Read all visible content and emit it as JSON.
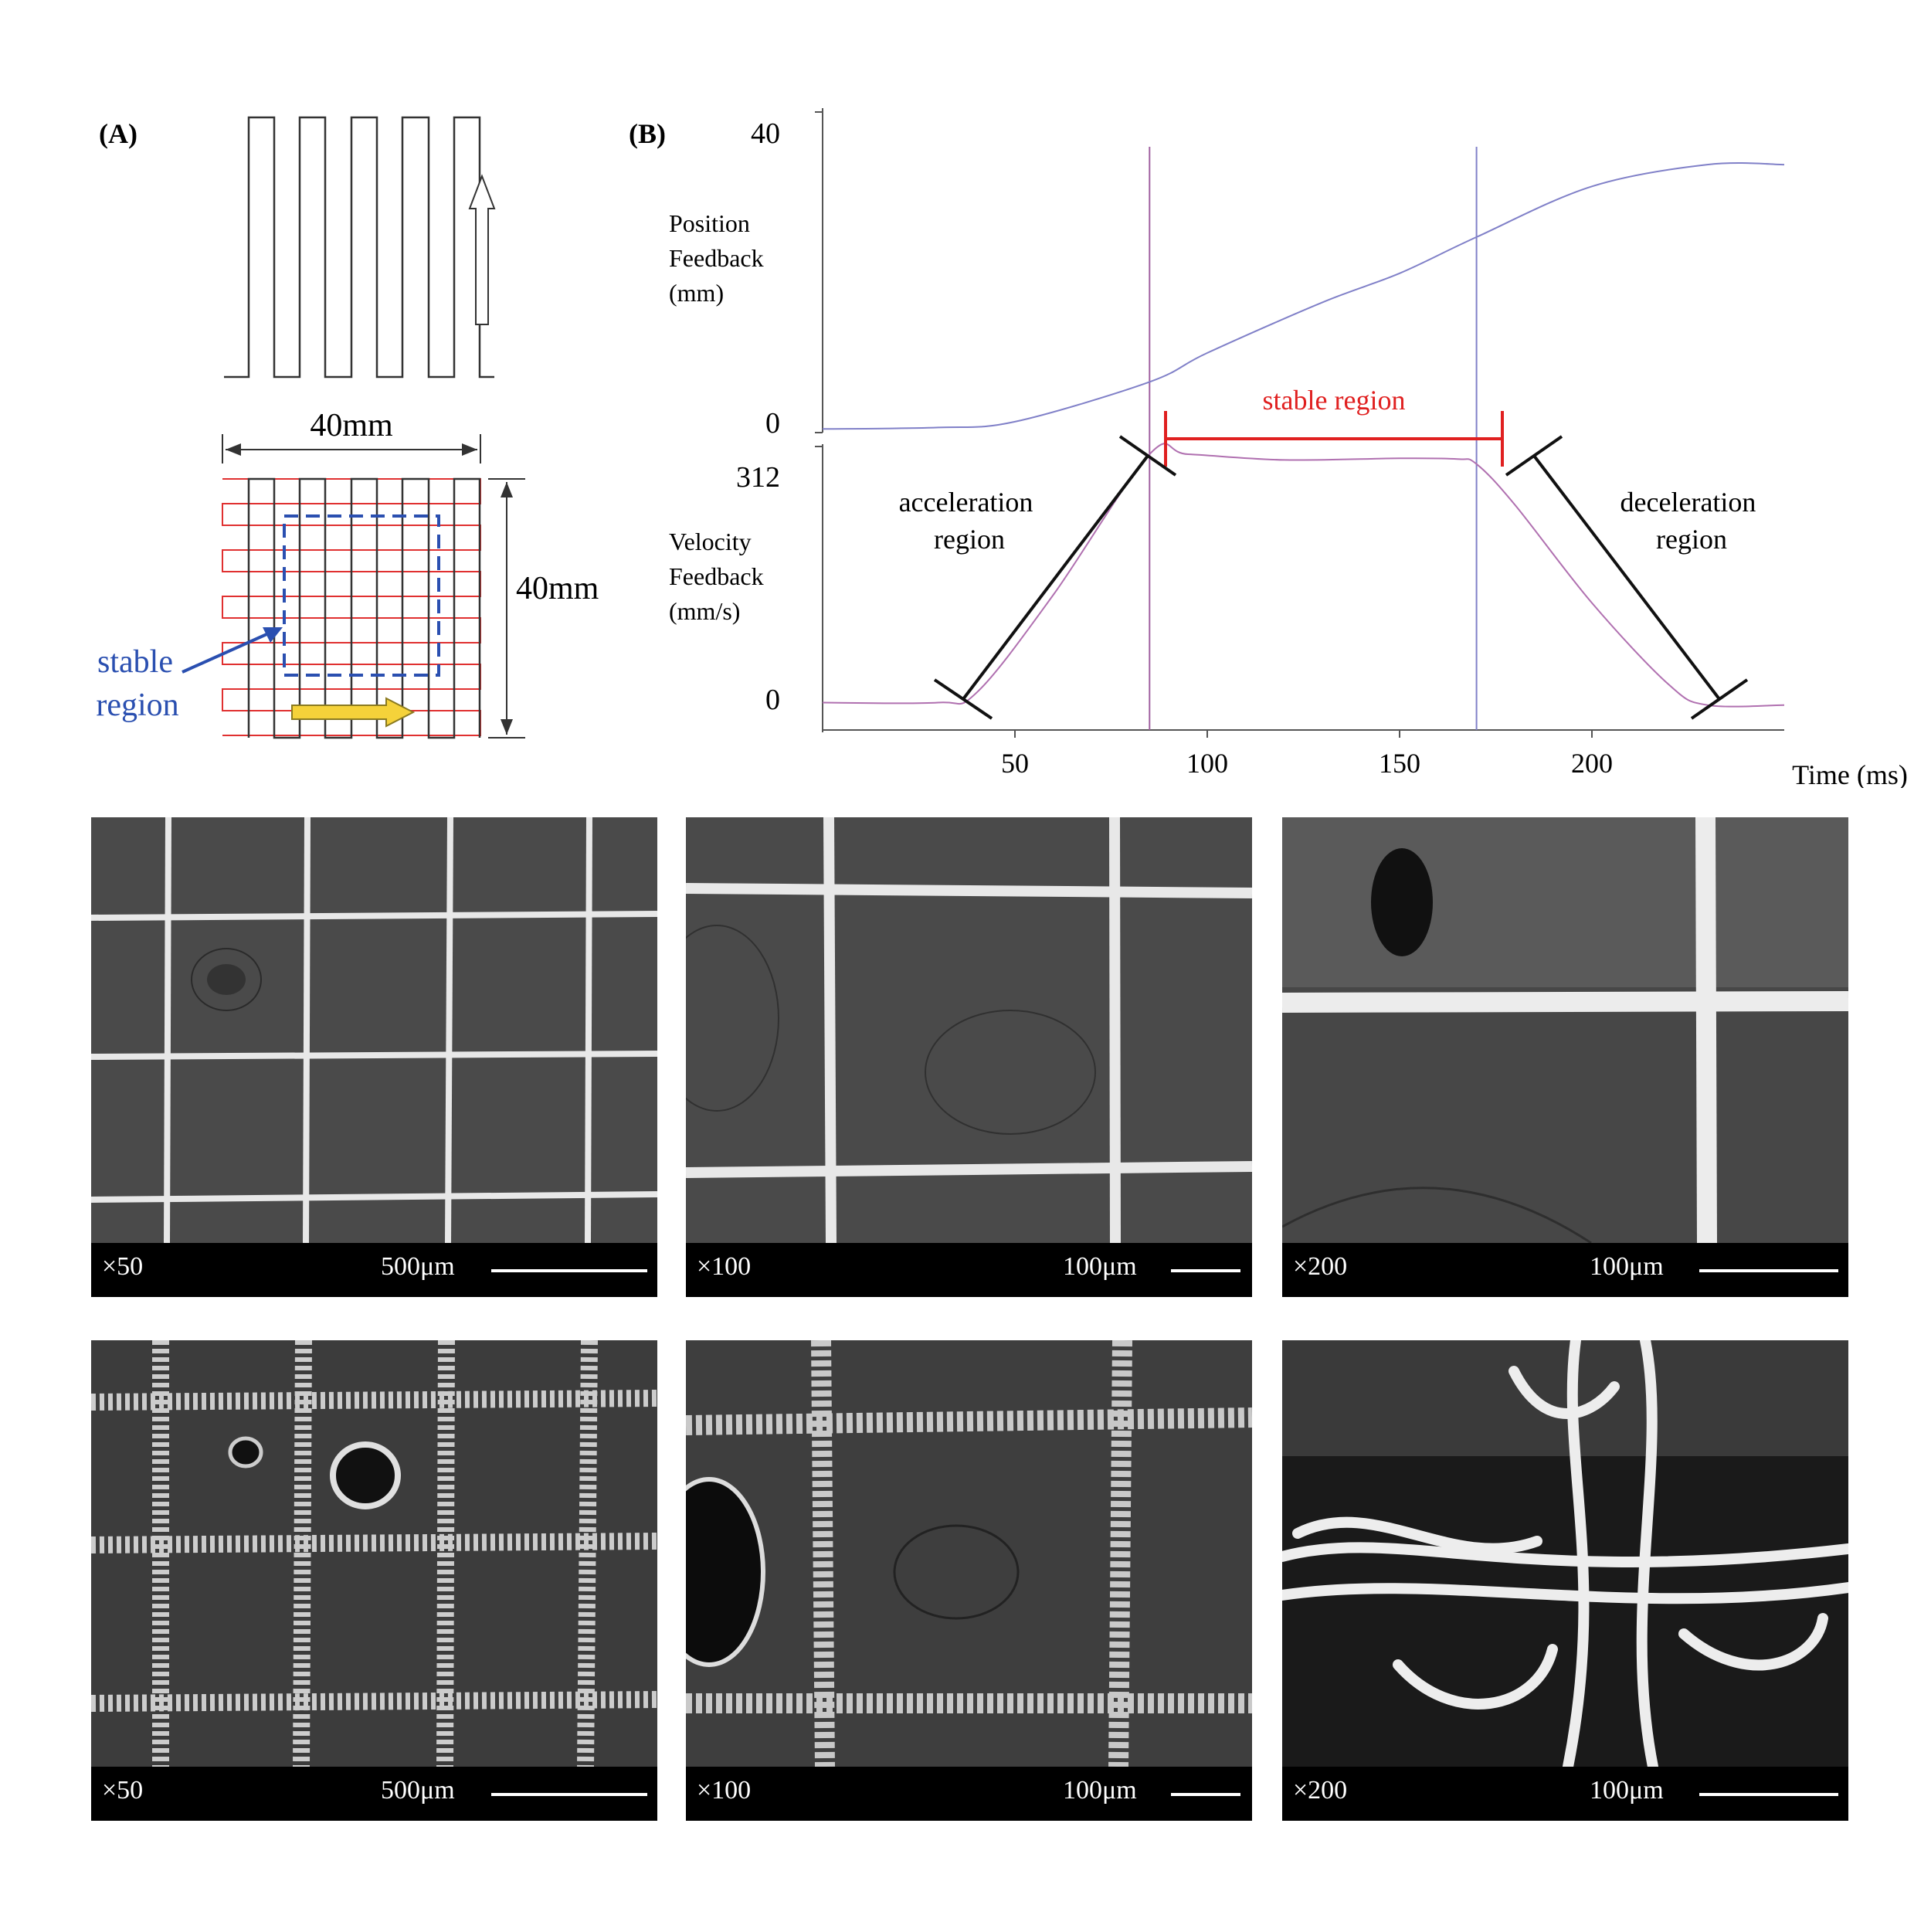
{
  "panel_a": {
    "label": "(A)",
    "width_label": "40mm",
    "height_label": "40mm",
    "stable_label_line1": "stable",
    "stable_label_line2": "region"
  },
  "panel_b": {
    "label": "(B)",
    "top_ylabel": [
      "Position",
      "Feedback",
      "(mm)"
    ],
    "bottom_ylabel": [
      "Velocity",
      "Feedback",
      "(mm/s)"
    ],
    "top_ticks": [
      "40",
      "0"
    ],
    "bottom_ticks": [
      "312",
      "0"
    ],
    "x_ticks": [
      "50",
      "100",
      "150",
      "200"
    ],
    "xlabel": "Time (ms)",
    "stable_region": "stable region",
    "acceleration_region": [
      "acceleration",
      "region"
    ],
    "deceleration_region": [
      "deceleration",
      "region"
    ]
  },
  "chart_data": {
    "type": "line",
    "x_range": [
      0,
      250
    ],
    "boundaries_ms": [
      85,
      170
    ],
    "series": [
      {
        "values_x": [
          0,
          30,
          50,
          85,
          100,
          130,
          150,
          170,
          200,
          230,
          250
        ],
        "values_y": [
          0.5,
          0.7,
          1.5,
          7,
          11,
          18,
          22,
          27,
          34,
          37,
          37
        ]
      },
      {
        "values_x": [
          0,
          30,
          40,
          60,
          85,
          95,
          120,
          150,
          165,
          170,
          180,
          200,
          220,
          230,
          250
        ],
        "values_y": [
          8,
          8,
          20,
          140,
          312,
          312,
          305,
          307,
          306,
          300,
          250,
          130,
          30,
          5,
          5
        ]
      }
    ],
    "colors": {
      "position": "#8080c8",
      "velocity": "#b070b0",
      "stable": "#e02020",
      "boundary_left": "#a060a0",
      "boundary_right": "#8080c8"
    }
  },
  "sem": {
    "top_row": [
      {
        "mag": "×50",
        "scale": "500μm"
      },
      {
        "mag": "×100",
        "scale": "100μm"
      },
      {
        "mag": "×200",
        "scale": "100μm"
      }
    ],
    "bottom_row": [
      {
        "mag": "×50",
        "scale": "500μm"
      },
      {
        "mag": "×100",
        "scale": "100μm"
      },
      {
        "mag": "×200",
        "scale": "100μm"
      }
    ]
  }
}
